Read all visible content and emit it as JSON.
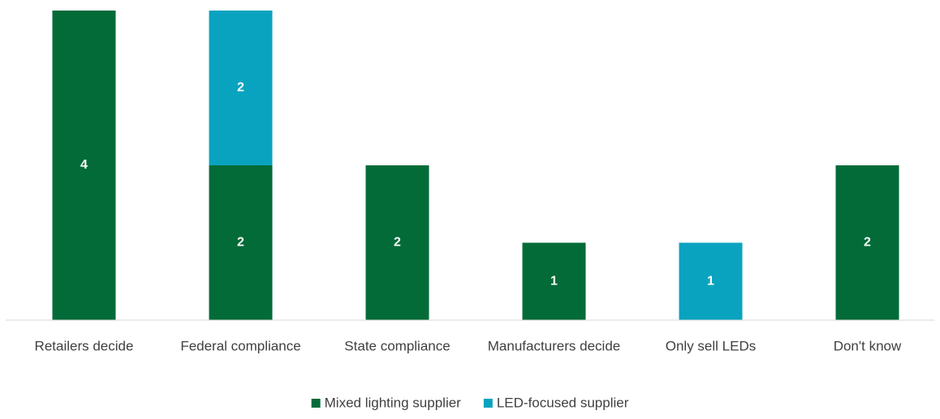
{
  "chart_data": {
    "type": "stacked_bar",
    "categories": [
      "Retailers decide",
      "Federal compliance",
      "State compliance",
      "Manufacturers decide",
      "Only sell LEDs",
      "Don't know"
    ],
    "series": [
      {
        "name": "Mixed lighting supplier",
        "color": "#036b38",
        "values": [
          4,
          2,
          2,
          1,
          0,
          2
        ]
      },
      {
        "name": "LED-focused supplier",
        "color": "#0aa3bf",
        "values": [
          0,
          2,
          0,
          0,
          1,
          0
        ]
      }
    ],
    "ylim": [
      0,
      4
    ],
    "legend": "bottom"
  }
}
